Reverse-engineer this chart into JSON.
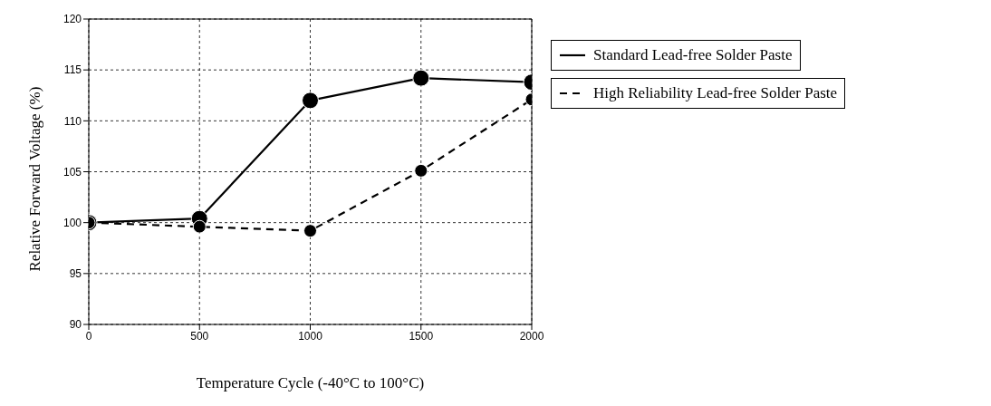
{
  "chart_data": {
    "type": "line",
    "xlabel": "Temperature Cycle (-40°C to 100°C)",
    "ylabel": "Relative Forward Voltage (%)",
    "x": [
      0,
      500,
      1000,
      1500,
      2000
    ],
    "series": [
      {
        "name": "Standard Lead-free Solder Paste",
        "color": "#000000",
        "line_style": "solid",
        "values": [
          100,
          100.4,
          112,
          114.2,
          113.8
        ]
      },
      {
        "name": "High Reliability Lead-free Solder Paste",
        "color": "#000000",
        "line_style": "dashed",
        "values": [
          100,
          99.6,
          99.2,
          105.1,
          112.1
        ]
      }
    ],
    "xlim": [
      0,
      2000
    ],
    "xticks": [
      0,
      500,
      1000,
      1500,
      2000
    ],
    "ylim": [
      90,
      120
    ],
    "yticks": [
      90,
      95,
      100,
      105,
      110,
      115,
      120
    ],
    "grid": true,
    "legend": "right",
    "marker": "circle"
  }
}
